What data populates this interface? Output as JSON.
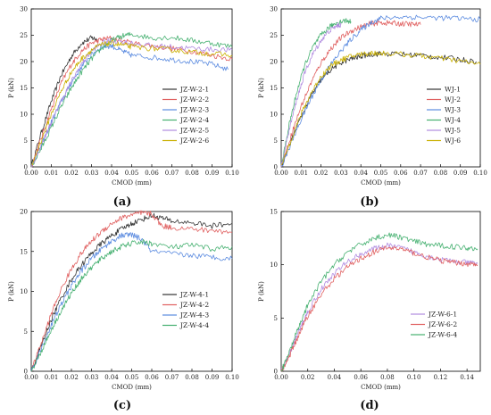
{
  "chart_data": [
    {
      "type": "line",
      "panel_label": "(a)",
      "xlabel": "CMOD (mm)",
      "ylabel": "P (kN)",
      "xlim": [
        0,
        0.1
      ],
      "ylim": [
        0,
        30
      ],
      "xticks": [
        "0.00",
        "0.01",
        "0.02",
        "0.03",
        "0.04",
        "0.05",
        "0.06",
        "0.07",
        "0.08",
        "0.09",
        "0.10"
      ],
      "yticks": [
        "0",
        "5",
        "10",
        "15",
        "20",
        "25",
        "30"
      ],
      "legend_position": "right",
      "series": [
        {
          "name": "JZ-W-2-1",
          "color": "#333333",
          "x": [
            0,
            0.005,
            0.01,
            0.015,
            0.02,
            0.025,
            0.03,
            0.033
          ],
          "y": [
            0,
            6.5,
            12.5,
            17.5,
            21,
            23.5,
            24.5,
            24.2
          ]
        },
        {
          "name": "JZ-W-2-2",
          "color": "#e06060",
          "x": [
            0,
            0.005,
            0.01,
            0.015,
            0.02,
            0.025,
            0.03,
            0.035,
            0.04,
            0.05,
            0.06,
            0.07,
            0.08,
            0.09,
            0.1
          ],
          "y": [
            0,
            5.5,
            11,
            16,
            19.5,
            22,
            23.5,
            24.2,
            24.5,
            23.5,
            23,
            22.5,
            22,
            21.2,
            20.5
          ]
        },
        {
          "name": "JZ-W-2-3",
          "color": "#5b8be0",
          "x": [
            0,
            0.005,
            0.01,
            0.015,
            0.02,
            0.025,
            0.03,
            0.035,
            0.04,
            0.045,
            0.05,
            0.06,
            0.07,
            0.08,
            0.09,
            0.098
          ],
          "y": [
            0,
            4,
            8.5,
            12.5,
            16,
            19,
            21.3,
            22.8,
            23,
            22,
            21.2,
            20.8,
            20.4,
            20,
            19.5,
            18.5
          ]
        },
        {
          "name": "JZ-W-2-4",
          "color": "#45b070",
          "x": [
            0,
            0.005,
            0.01,
            0.015,
            0.02,
            0.025,
            0.03,
            0.035,
            0.04,
            0.045,
            0.05,
            0.06,
            0.07,
            0.08,
            0.09,
            0.1
          ],
          "y": [
            0,
            3.5,
            7.5,
            11.5,
            15,
            18,
            20.5,
            22.5,
            24,
            24.8,
            25.2,
            24.5,
            24.6,
            24,
            23.5,
            22.8
          ]
        },
        {
          "name": "JZ-W-2-5",
          "color": "#b08be0",
          "x": [
            0,
            0.005,
            0.01,
            0.015,
            0.02,
            0.025,
            0.03,
            0.035,
            0.04,
            0.05,
            0.06,
            0.07,
            0.08,
            0.09,
            0.1
          ],
          "y": [
            0,
            4.2,
            8.5,
            12.5,
            16.2,
            19.5,
            22,
            23.5,
            24,
            23.5,
            23,
            22.8,
            22.5,
            22.3,
            22.2
          ]
        },
        {
          "name": "JZ-W-2-6",
          "color": "#c9b000",
          "x": [
            0,
            0.005,
            0.01,
            0.015,
            0.02,
            0.025,
            0.03,
            0.035,
            0.04,
            0.045,
            0.05,
            0.06,
            0.07,
            0.08,
            0.09,
            0.1
          ],
          "y": [
            0,
            5,
            10,
            14.5,
            18,
            20.5,
            22.2,
            23.2,
            23.5,
            23.2,
            22.8,
            22.5,
            22.2,
            21.8,
            21.5,
            21.2
          ]
        }
      ]
    },
    {
      "type": "line",
      "panel_label": "(b)",
      "xlabel": "CMOD (mm)",
      "ylabel": "P (kN)",
      "xlim": [
        0,
        0.1
      ],
      "ylim": [
        0,
        30
      ],
      "xticks": [
        "0.00",
        "0.01",
        "0.02",
        "0.03",
        "0.04",
        "0.05",
        "0.06",
        "0.07",
        "0.08",
        "0.09",
        "0.10"
      ],
      "yticks": [
        "0",
        "5",
        "10",
        "15",
        "20",
        "25",
        "30"
      ],
      "legend_position": "right",
      "series": [
        {
          "name": "WJ-1",
          "color": "#333333",
          "x": [
            0,
            0.005,
            0.01,
            0.015,
            0.02,
            0.025,
            0.03,
            0.035,
            0.04,
            0.045,
            0.05,
            0.06,
            0.07,
            0.08,
            0.09,
            0.098
          ],
          "y": [
            0,
            5,
            9.5,
            13.5,
            16.5,
            18.5,
            19.8,
            20.5,
            21,
            21.4,
            21.5,
            21.4,
            21.2,
            20.8,
            20.4,
            20
          ]
        },
        {
          "name": "WJ-2",
          "color": "#e06060",
          "x": [
            0,
            0.005,
            0.01,
            0.015,
            0.02,
            0.025,
            0.03,
            0.035,
            0.04,
            0.045,
            0.05,
            0.055,
            0.06,
            0.065,
            0.07
          ],
          "y": [
            0,
            6,
            11.5,
            16,
            19.8,
            22.5,
            24.5,
            25.8,
            26.6,
            27.2,
            27.4,
            27.3,
            27.2,
            27.1,
            27
          ]
        },
        {
          "name": "WJ-3",
          "color": "#5b8be0",
          "x": [
            0,
            0.005,
            0.01,
            0.015,
            0.02,
            0.025,
            0.03,
            0.035,
            0.04,
            0.045,
            0.05,
            0.06,
            0.07,
            0.08,
            0.09,
            0.1
          ],
          "y": [
            0,
            4.5,
            9,
            13,
            16.5,
            19.5,
            22,
            24.2,
            26,
            27.4,
            28.2,
            28.5,
            28.4,
            28.3,
            28.2,
            28
          ]
        },
        {
          "name": "WJ-4",
          "color": "#45b070",
          "x": [
            0,
            0.004,
            0.008,
            0.012,
            0.016,
            0.02,
            0.024,
            0.028,
            0.032,
            0.035
          ],
          "y": [
            0,
            8,
            14.5,
            19.5,
            22.8,
            25,
            26.5,
            27.4,
            27.8,
            27.6
          ]
        },
        {
          "name": "WJ-5",
          "color": "#b08be0",
          "x": [
            0,
            0.004,
            0.008,
            0.012,
            0.016,
            0.02,
            0.024,
            0.028,
            0.03
          ],
          "y": [
            0,
            7,
            13,
            18,
            21.5,
            24,
            25.8,
            26.8,
            27
          ]
        },
        {
          "name": "WJ-6",
          "color": "#c9b000",
          "x": [
            0,
            0.005,
            0.01,
            0.015,
            0.02,
            0.025,
            0.03,
            0.035,
            0.04,
            0.045,
            0.05,
            0.06,
            0.07,
            0.08,
            0.09,
            0.1
          ],
          "y": [
            0,
            5.2,
            10,
            14,
            17.2,
            19.2,
            20.3,
            21,
            21.4,
            21.6,
            21.6,
            21.4,
            21.1,
            20.6,
            20.1,
            19.5
          ]
        }
      ]
    },
    {
      "type": "line",
      "panel_label": "(c)",
      "xlabel": "CMOD (mm)",
      "ylabel": "P (kN)",
      "xlim": [
        0,
        0.1
      ],
      "ylim": [
        0,
        20
      ],
      "xticks": [
        "0.00",
        "0.01",
        "0.02",
        "0.03",
        "0.04",
        "0.05",
        "0.06",
        "0.07",
        "0.08",
        "0.09",
        "0.10"
      ],
      "yticks": [
        "0",
        "5",
        "10",
        "15",
        "20"
      ],
      "legend_position": "right",
      "series": [
        {
          "name": "JZ-W-4-1",
          "color": "#333333",
          "x": [
            0,
            0.005,
            0.01,
            0.015,
            0.02,
            0.025,
            0.03,
            0.035,
            0.04,
            0.045,
            0.05,
            0.055,
            0.06,
            0.065,
            0.07,
            0.08,
            0.09,
            0.1
          ],
          "y": [
            0,
            3.2,
            6.5,
            9.2,
            11.5,
            13.3,
            14.8,
            16,
            17,
            17.8,
            18.5,
            19,
            19.5,
            19.2,
            18.8,
            18.6,
            18.2,
            18.5
          ]
        },
        {
          "name": "JZ-W-4-2",
          "color": "#e06060",
          "x": [
            0,
            0.005,
            0.01,
            0.015,
            0.02,
            0.025,
            0.03,
            0.035,
            0.04,
            0.045,
            0.05,
            0.055,
            0.06,
            0.065,
            0.07,
            0.08,
            0.09,
            0.1
          ],
          "y": [
            0,
            3.5,
            7.2,
            10.3,
            12.8,
            14.8,
            16.3,
            17.5,
            18.5,
            19.2,
            19.6,
            19.8,
            19.7,
            18.2,
            18,
            17.8,
            17.6,
            17.4
          ]
        },
        {
          "name": "JZ-W-4-3",
          "color": "#5b8be0",
          "x": [
            0,
            0.005,
            0.01,
            0.015,
            0.02,
            0.025,
            0.03,
            0.035,
            0.04,
            0.045,
            0.05,
            0.055,
            0.06,
            0.07,
            0.08,
            0.09,
            0.1
          ],
          "y": [
            0,
            2.8,
            5.8,
            8.4,
            10.7,
            12.6,
            14.1,
            15.3,
            16.3,
            17,
            17.1,
            16.5,
            15,
            14.7,
            14.5,
            14.3,
            14.1
          ]
        },
        {
          "name": "JZ-W-4-4",
          "color": "#45b070",
          "x": [
            0,
            0.005,
            0.01,
            0.015,
            0.02,
            0.025,
            0.03,
            0.035,
            0.04,
            0.045,
            0.05,
            0.055,
            0.06,
            0.07,
            0.08,
            0.09,
            0.1
          ],
          "y": [
            0,
            2.5,
            5.2,
            7.6,
            9.8,
            11.6,
            13,
            14.1,
            15,
            15.6,
            16,
            16.2,
            16,
            15.5,
            15.8,
            15.3,
            15.6
          ]
        }
      ]
    },
    {
      "type": "line",
      "panel_label": "(d)",
      "xlabel": "CMOD (mm)",
      "ylabel": "P (kN)",
      "xlim": [
        0,
        0.15
      ],
      "ylim": [
        0,
        15
      ],
      "xticks": [
        "0.00",
        "0.02",
        "0.04",
        "0.06",
        "0.08",
        "0.10",
        "0.12",
        "0.14"
      ],
      "yticks": [
        "0",
        "5",
        "10",
        "15"
      ],
      "legend_position": "right",
      "series": [
        {
          "name": "JZ-W-6-1",
          "color": "#b08be0",
          "x": [
            0,
            0.005,
            0.01,
            0.015,
            0.02,
            0.03,
            0.04,
            0.05,
            0.06,
            0.07,
            0.08,
            0.09,
            0.1,
            0.11,
            0.12,
            0.13,
            0.14,
            0.148
          ],
          "y": [
            0,
            1.2,
            2.8,
            4.2,
            5.6,
            7.7,
            9.2,
            10.3,
            11,
            11.5,
            11.8,
            11.6,
            11.2,
            10.8,
            10.5,
            10.3,
            10.2,
            10.1
          ]
        },
        {
          "name": "JZ-W-6-2",
          "color": "#e06060",
          "x": [
            0,
            0.005,
            0.01,
            0.015,
            0.02,
            0.03,
            0.04,
            0.05,
            0.06,
            0.07,
            0.08,
            0.09,
            0.1,
            0.11,
            0.12,
            0.13,
            0.14,
            0.148
          ],
          "y": [
            0,
            1.1,
            2.5,
            3.9,
            5.2,
            7.2,
            8.7,
            9.8,
            10.6,
            11.2,
            11.6,
            11.5,
            11.1,
            10.7,
            10.4,
            10.2,
            10.1,
            10
          ]
        },
        {
          "name": "JZ-W-6-4",
          "color": "#45b070",
          "x": [
            0,
            0.005,
            0.01,
            0.015,
            0.02,
            0.03,
            0.04,
            0.05,
            0.06,
            0.07,
            0.08,
            0.09,
            0.1,
            0.11,
            0.12,
            0.13,
            0.14,
            0.148
          ],
          "y": [
            0,
            1.4,
            3.1,
            4.7,
            6.2,
            8.4,
            10,
            11.2,
            11.9,
            12.5,
            12.8,
            12.6,
            12.2,
            11.9,
            11.8,
            11.7,
            11.6,
            11.5
          ]
        }
      ]
    }
  ]
}
